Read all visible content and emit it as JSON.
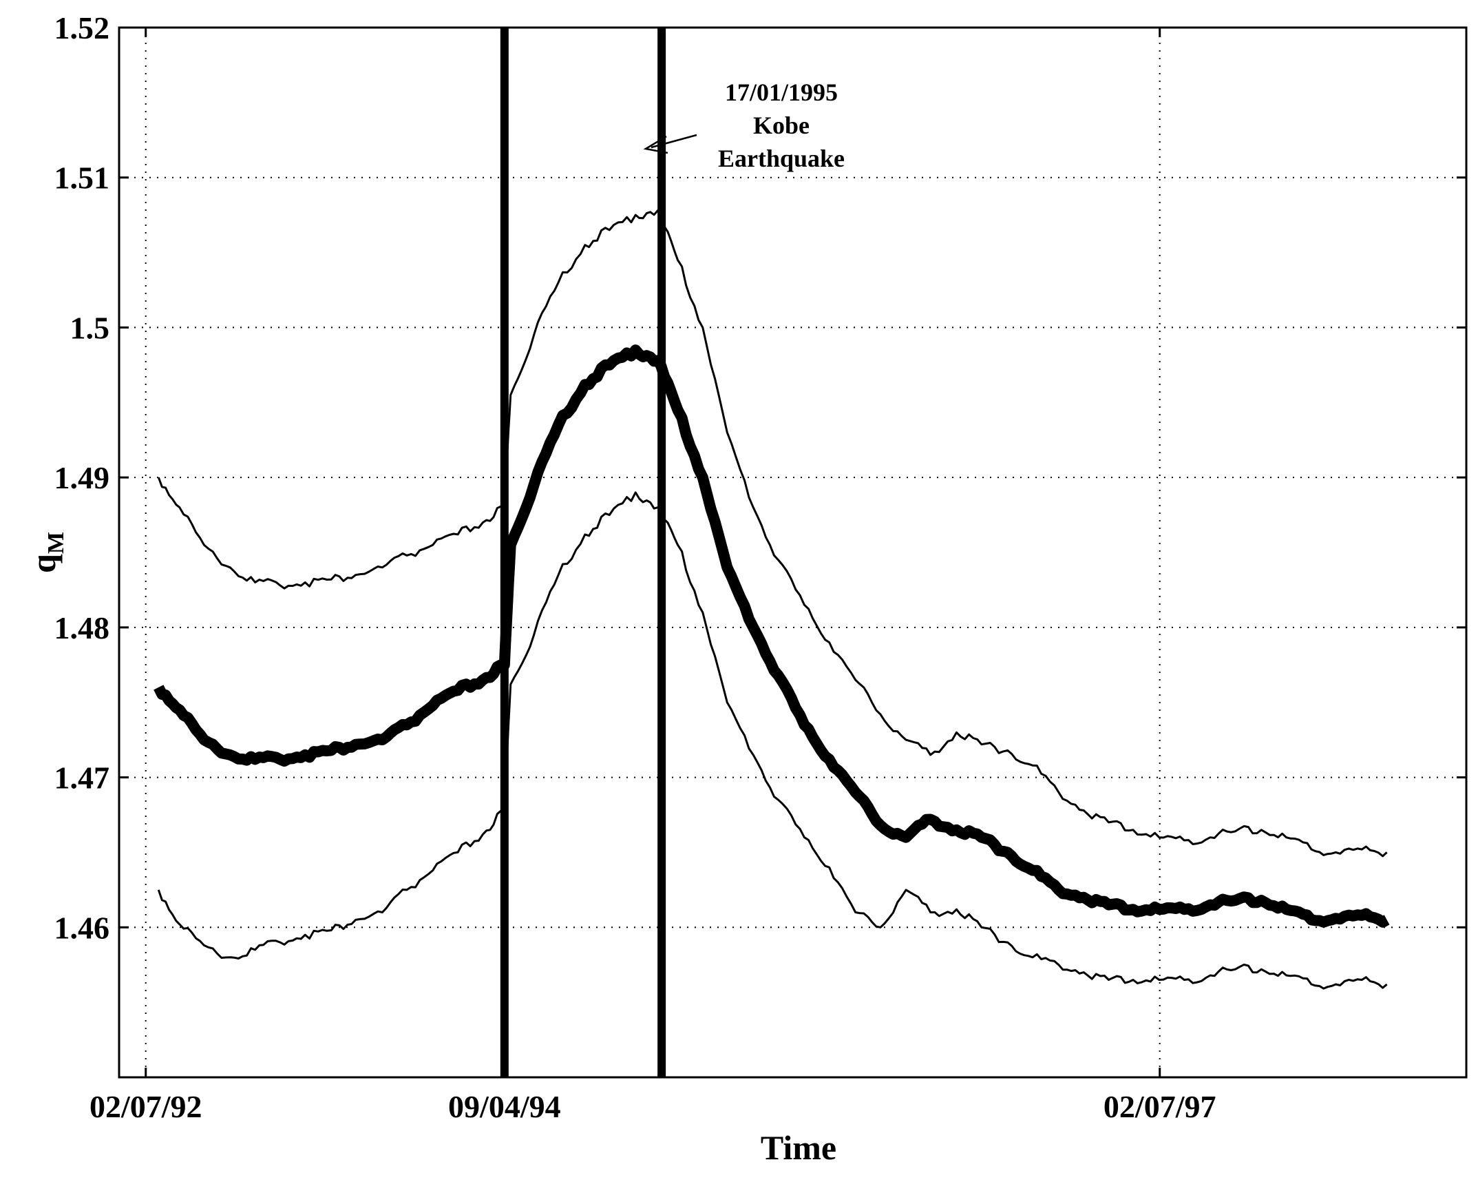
{
  "chart_data": {
    "type": "line",
    "title": "",
    "xlabel": "Time",
    "ylabel_main": "q",
    "ylabel_sub": "M",
    "x_axis_type": "date",
    "xlim": [
      "1992-05-15",
      "1999-01-05"
    ],
    "ylim": [
      1.45,
      1.52
    ],
    "x_ticks": [
      {
        "date": "1992-07-02",
        "label": "02/07/92"
      },
      {
        "date": "1994-04-09",
        "label": "09/04/94"
      },
      {
        "date": "1997-07-02",
        "label": "02/07/97"
      }
    ],
    "y_ticks": [
      1.46,
      1.47,
      1.48,
      1.49,
      1.5,
      1.51,
      1.52
    ],
    "y_tick_labels": [
      "1.46",
      "1.47",
      "1.48",
      "1.49",
      "1.5",
      "1.51",
      "1.52"
    ],
    "grid": true,
    "grid_style": "dotted",
    "legend": "none",
    "vertical_lines": [
      {
        "date": "1994-04-09"
      },
      {
        "date": "1995-01-17"
      }
    ],
    "annotation": {
      "lines": [
        "17/01/1995",
        "Kobe",
        "Earthquake"
      ],
      "points_to_date": "1995-01-17",
      "points_to_value": 1.5115
    },
    "series": [
      {
        "role": "upper",
        "style": "thin",
        "points": [
          [
            "1992-07-25",
            1.49
          ],
          [
            "1992-09-01",
            1.488
          ],
          [
            "1992-10-15",
            1.4855
          ],
          [
            "1992-12-01",
            1.484
          ],
          [
            "1993-01-15",
            1.483
          ],
          [
            "1993-03-01",
            1.4828
          ],
          [
            "1993-04-15",
            1.483
          ],
          [
            "1993-06-01",
            1.4832
          ],
          [
            "1993-07-15",
            1.4835
          ],
          [
            "1993-09-01",
            1.484
          ],
          [
            "1993-10-15",
            1.4848
          ],
          [
            "1993-12-01",
            1.4855
          ],
          [
            "1994-01-15",
            1.4862
          ],
          [
            "1994-03-01",
            1.487
          ],
          [
            "1994-04-09",
            1.488
          ],
          [
            "1994-04-20",
            1.4955
          ],
          [
            "1994-06-01",
            1.4995
          ],
          [
            "1994-07-15",
            1.503
          ],
          [
            "1994-09-01",
            1.5055
          ],
          [
            "1994-10-15",
            1.5065
          ],
          [
            "1994-12-01",
            1.5075
          ],
          [
            "1995-01-10",
            1.5078
          ],
          [
            "1995-02-15",
            1.5045
          ],
          [
            "1995-04-01",
            1.5
          ],
          [
            "1995-05-15",
            1.493
          ],
          [
            "1995-07-01",
            1.488
          ],
          [
            "1995-08-15",
            1.4845
          ],
          [
            "1995-10-01",
            1.4815
          ],
          [
            "1995-11-15",
            1.479
          ],
          [
            "1996-01-01",
            1.4765
          ],
          [
            "1996-02-15",
            1.4742
          ],
          [
            "1996-04-01",
            1.4725
          ],
          [
            "1996-05-15",
            1.4715
          ],
          [
            "1996-07-01",
            1.473
          ],
          [
            "1996-08-15",
            1.4722
          ],
          [
            "1996-10-01",
            1.4718
          ],
          [
            "1996-11-15",
            1.4708
          ],
          [
            "1997-01-01",
            1.469
          ],
          [
            "1997-02-15",
            1.4678
          ],
          [
            "1997-04-01",
            1.467
          ],
          [
            "1997-05-15",
            1.4665
          ],
          [
            "1997-07-01",
            1.466
          ],
          [
            "1997-08-15",
            1.4658
          ],
          [
            "1997-10-01",
            1.466
          ],
          [
            "1997-11-15",
            1.4664
          ],
          [
            "1998-01-01",
            1.4665
          ],
          [
            "1998-02-15",
            1.466
          ],
          [
            "1998-04-01",
            1.4652
          ],
          [
            "1998-05-15",
            1.465
          ],
          [
            "1998-07-01",
            1.4652
          ],
          [
            "1998-08-15",
            1.465
          ]
        ]
      },
      {
        "role": "center",
        "style": "thick",
        "points": [
          [
            "1992-07-25",
            1.476
          ],
          [
            "1992-09-01",
            1.4745
          ],
          [
            "1992-10-15",
            1.4725
          ],
          [
            "1992-12-01",
            1.4715
          ],
          [
            "1993-01-15",
            1.4712
          ],
          [
            "1993-03-01",
            1.4712
          ],
          [
            "1993-04-15",
            1.4715
          ],
          [
            "1993-06-01",
            1.4718
          ],
          [
            "1993-07-15",
            1.4722
          ],
          [
            "1993-09-01",
            1.4725
          ],
          [
            "1993-10-15",
            1.4735
          ],
          [
            "1993-12-01",
            1.4748
          ],
          [
            "1994-01-15",
            1.4758
          ],
          [
            "1994-03-01",
            1.4765
          ],
          [
            "1994-04-09",
            1.4775
          ],
          [
            "1994-04-20",
            1.4855
          ],
          [
            "1994-06-01",
            1.4895
          ],
          [
            "1994-07-15",
            1.4935
          ],
          [
            "1994-09-01",
            1.4962
          ],
          [
            "1994-10-15",
            1.4975
          ],
          [
            "1994-12-01",
            1.4985
          ],
          [
            "1995-01-10",
            1.4978
          ],
          [
            "1995-02-15",
            1.4945
          ],
          [
            "1995-04-01",
            1.49
          ],
          [
            "1995-05-15",
            1.484
          ],
          [
            "1995-07-01",
            1.48
          ],
          [
            "1995-08-15",
            1.4768
          ],
          [
            "1995-10-01",
            1.4735
          ],
          [
            "1995-11-15",
            1.4712
          ],
          [
            "1996-01-01",
            1.469
          ],
          [
            "1996-02-15",
            1.4668
          ],
          [
            "1996-04-01",
            1.466
          ],
          [
            "1996-05-15",
            1.4672
          ],
          [
            "1996-07-01",
            1.4665
          ],
          [
            "1996-08-15",
            1.466
          ],
          [
            "1996-10-01",
            1.465
          ],
          [
            "1996-11-15",
            1.4638
          ],
          [
            "1997-01-01",
            1.4625
          ],
          [
            "1997-02-15",
            1.462
          ],
          [
            "1997-04-01",
            1.4615
          ],
          [
            "1997-05-15",
            1.4612
          ],
          [
            "1997-07-01",
            1.4612
          ],
          [
            "1997-08-15",
            1.4612
          ],
          [
            "1997-10-01",
            1.4615
          ],
          [
            "1997-11-15",
            1.4618
          ],
          [
            "1998-01-01",
            1.4618
          ],
          [
            "1998-02-15",
            1.4612
          ],
          [
            "1998-04-01",
            1.4605
          ],
          [
            "1998-05-15",
            1.4606
          ],
          [
            "1998-07-01",
            1.4608
          ],
          [
            "1998-08-15",
            1.4605
          ]
        ]
      },
      {
        "role": "lower",
        "style": "thin",
        "points": [
          [
            "1992-07-25",
            1.4625
          ],
          [
            "1992-09-01",
            1.4602
          ],
          [
            "1992-10-15",
            1.4588
          ],
          [
            "1992-12-01",
            1.458
          ],
          [
            "1993-01-15",
            1.4585
          ],
          [
            "1993-03-01",
            1.459
          ],
          [
            "1993-04-15",
            1.4595
          ],
          [
            "1993-06-01",
            1.4598
          ],
          [
            "1993-07-15",
            1.4605
          ],
          [
            "1993-09-01",
            1.461
          ],
          [
            "1993-10-15",
            1.4625
          ],
          [
            "1993-12-01",
            1.4638
          ],
          [
            "1994-01-15",
            1.465
          ],
          [
            "1994-03-01",
            1.4662
          ],
          [
            "1994-04-09",
            1.4678
          ],
          [
            "1994-04-20",
            1.4762
          ],
          [
            "1994-06-01",
            1.4795
          ],
          [
            "1994-07-15",
            1.4835
          ],
          [
            "1994-09-01",
            1.4862
          ],
          [
            "1994-10-15",
            1.4875
          ],
          [
            "1994-12-01",
            1.489
          ],
          [
            "1995-01-10",
            1.488
          ],
          [
            "1995-02-15",
            1.4855
          ],
          [
            "1995-04-01",
            1.481
          ],
          [
            "1995-05-15",
            1.475
          ],
          [
            "1995-07-01",
            1.4715
          ],
          [
            "1995-08-15",
            1.4685
          ],
          [
            "1995-10-01",
            1.466
          ],
          [
            "1995-11-15",
            1.464
          ],
          [
            "1996-01-01",
            1.461
          ],
          [
            "1996-02-15",
            1.46
          ],
          [
            "1996-04-01",
            1.4625
          ],
          [
            "1996-05-15",
            1.461
          ],
          [
            "1996-07-01",
            1.4612
          ],
          [
            "1996-08-15",
            1.46
          ],
          [
            "1996-10-01",
            1.459
          ],
          [
            "1996-11-15",
            1.458
          ],
          [
            "1997-01-01",
            1.4575
          ],
          [
            "1997-02-15",
            1.457
          ],
          [
            "1997-04-01",
            1.4565
          ],
          [
            "1997-05-15",
            1.4565
          ],
          [
            "1997-07-01",
            1.4565
          ],
          [
            "1997-08-15",
            1.4565
          ],
          [
            "1997-10-01",
            1.4568
          ],
          [
            "1997-11-15",
            1.4572
          ],
          [
            "1998-01-01",
            1.4572
          ],
          [
            "1998-02-15",
            1.4568
          ],
          [
            "1998-04-01",
            1.4562
          ],
          [
            "1998-05-15",
            1.4562
          ],
          [
            "1998-07-01",
            1.4565
          ],
          [
            "1998-08-15",
            1.4562
          ]
        ]
      }
    ]
  }
}
